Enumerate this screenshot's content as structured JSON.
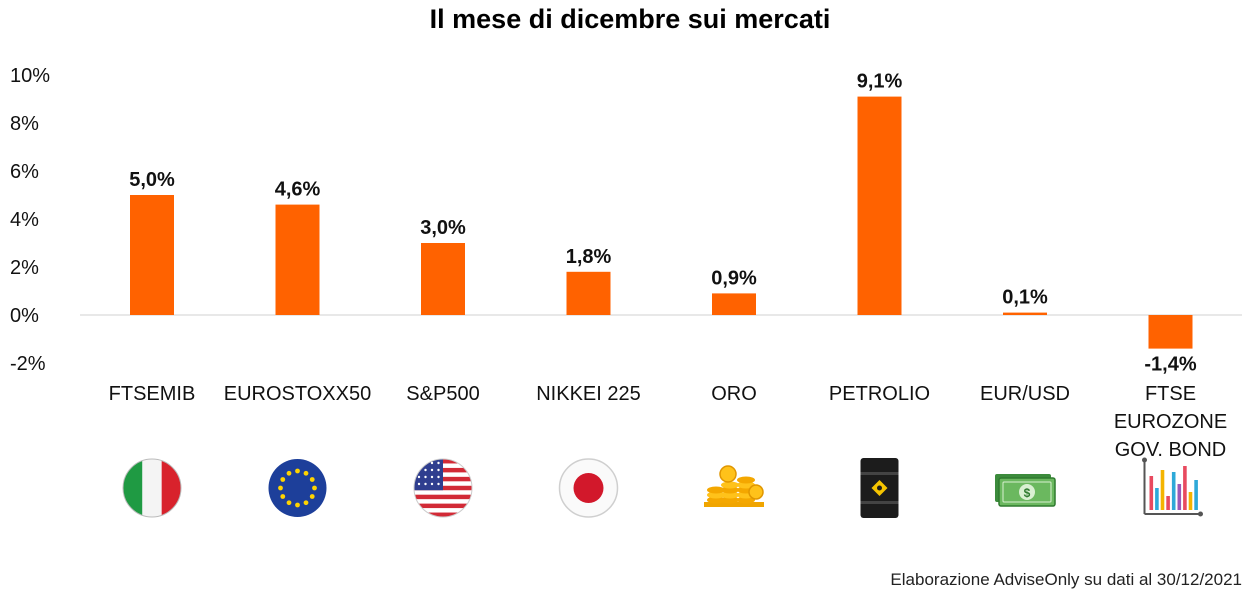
{
  "chart_data": {
    "type": "bar",
    "title": "Il mese di dicembre sui mercati",
    "categories": [
      [
        "FTSEMIB"
      ],
      [
        "EUROSTOXX50"
      ],
      [
        "S&P500"
      ],
      [
        "NIKKEI 225"
      ],
      [
        "ORO"
      ],
      [
        "PETROLIO"
      ],
      [
        "EUR/USD"
      ],
      [
        "FTSE",
        "EUROZONE",
        "GOV. BOND"
      ]
    ],
    "values": [
      5.0,
      4.6,
      3.0,
      1.8,
      0.9,
      9.1,
      0.1,
      -1.4
    ],
    "data_labels": [
      "5,0%",
      "4,6%",
      "3,0%",
      "1,8%",
      "0,9%",
      "9,1%",
      "0,1%",
      "-1,4%"
    ],
    "y_ticks": [
      10,
      8,
      6,
      4,
      2,
      0,
      -2
    ],
    "y_tick_labels": [
      "10%",
      "8%",
      "6%",
      "4%",
      "2%",
      "0%",
      "-2%"
    ],
    "ylim": [
      -2,
      10
    ],
    "bar_color": "#FF6200",
    "grid": false,
    "icons": [
      "italy-flag-icon",
      "eu-flag-icon",
      "usa-flag-icon",
      "japan-flag-icon",
      "gold-coins-icon",
      "oil-barrel-icon",
      "banknotes-icon",
      "bar-chart-icon"
    ]
  },
  "source": "Elaborazione AdviseOnly su dati al 30/12/2021"
}
